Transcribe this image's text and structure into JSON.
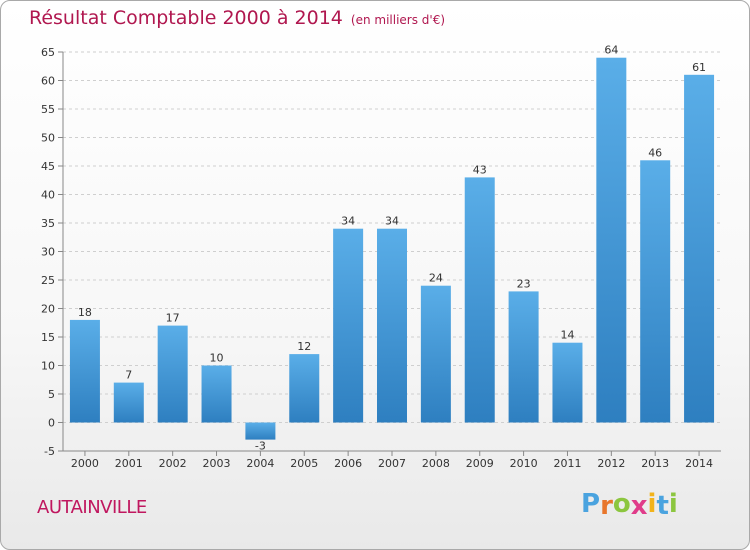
{
  "chart_data": {
    "type": "bar",
    "title": "Résultat Comptable 2000 à 2014",
    "subtitle": "(en milliers d'€)",
    "categories": [
      "2000",
      "2001",
      "2002",
      "2003",
      "2004",
      "2005",
      "2006",
      "2007",
      "2008",
      "2009",
      "2010",
      "2011",
      "2012",
      "2013",
      "2014"
    ],
    "values": [
      18,
      7,
      17,
      10,
      -3,
      12,
      34,
      34,
      24,
      43,
      23,
      14,
      64,
      46,
      61
    ],
    "ylim": [
      -5,
      65
    ],
    "yticks": [
      -5,
      0,
      5,
      10,
      15,
      20,
      25,
      30,
      35,
      40,
      45,
      50,
      55,
      60,
      65
    ],
    "grid": true,
    "bar_color_top": "#5aaee8",
    "bar_color_bottom": "#2e7fc0"
  },
  "footer": {
    "commune": "AUTAINVILLE",
    "logo_letters": [
      "P",
      "r",
      "o",
      "x",
      "i",
      "t",
      "i"
    ],
    "logo_colors": [
      "#4aa3df",
      "#e8762c",
      "#8cc63f",
      "#e03c8a",
      "#f2b31b",
      "#4aa3df",
      "#8cc63f"
    ]
  }
}
